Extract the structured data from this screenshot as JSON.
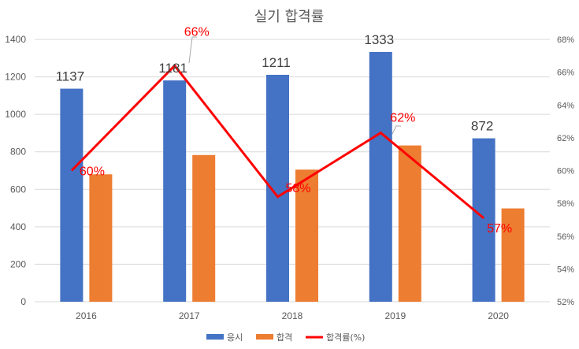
{
  "chart_data": {
    "type": "bar",
    "title": "실기 합격률",
    "categories": [
      "2016",
      "2017",
      "2018",
      "2019",
      "2020"
    ],
    "series": [
      {
        "name": "응시",
        "type": "bar",
        "axis": "left",
        "values": [
          1137,
          1181,
          1211,
          1333,
          872
        ],
        "labels": [
          "1137",
          "1181",
          "1211",
          "1333",
          "872"
        ],
        "color": "#4472c4"
      },
      {
        "name": "합격",
        "type": "bar",
        "axis": "left",
        "values": [
          680,
          783,
          705,
          834,
          498
        ],
        "color": "#ed7d31"
      },
      {
        "name": "합격률(%)",
        "type": "line",
        "axis": "right",
        "values": [
          60,
          66.4,
          58.4,
          62.3,
          57.1
        ],
        "labels": [
          "60%",
          "66%",
          "58%",
          "62%",
          "57%"
        ],
        "color": "#ff0000"
      }
    ],
    "ylim": [
      0,
      1400
    ],
    "y_ticks": [
      "0",
      "200",
      "400",
      "600",
      "800",
      "1000",
      "1200",
      "1400"
    ],
    "y2lim": [
      52,
      68
    ],
    "y2_ticks": [
      "52%",
      "54%",
      "56%",
      "58%",
      "60%",
      "62%",
      "64%",
      "66%",
      "68%"
    ],
    "grid": true,
    "legend_position": "bottom"
  }
}
